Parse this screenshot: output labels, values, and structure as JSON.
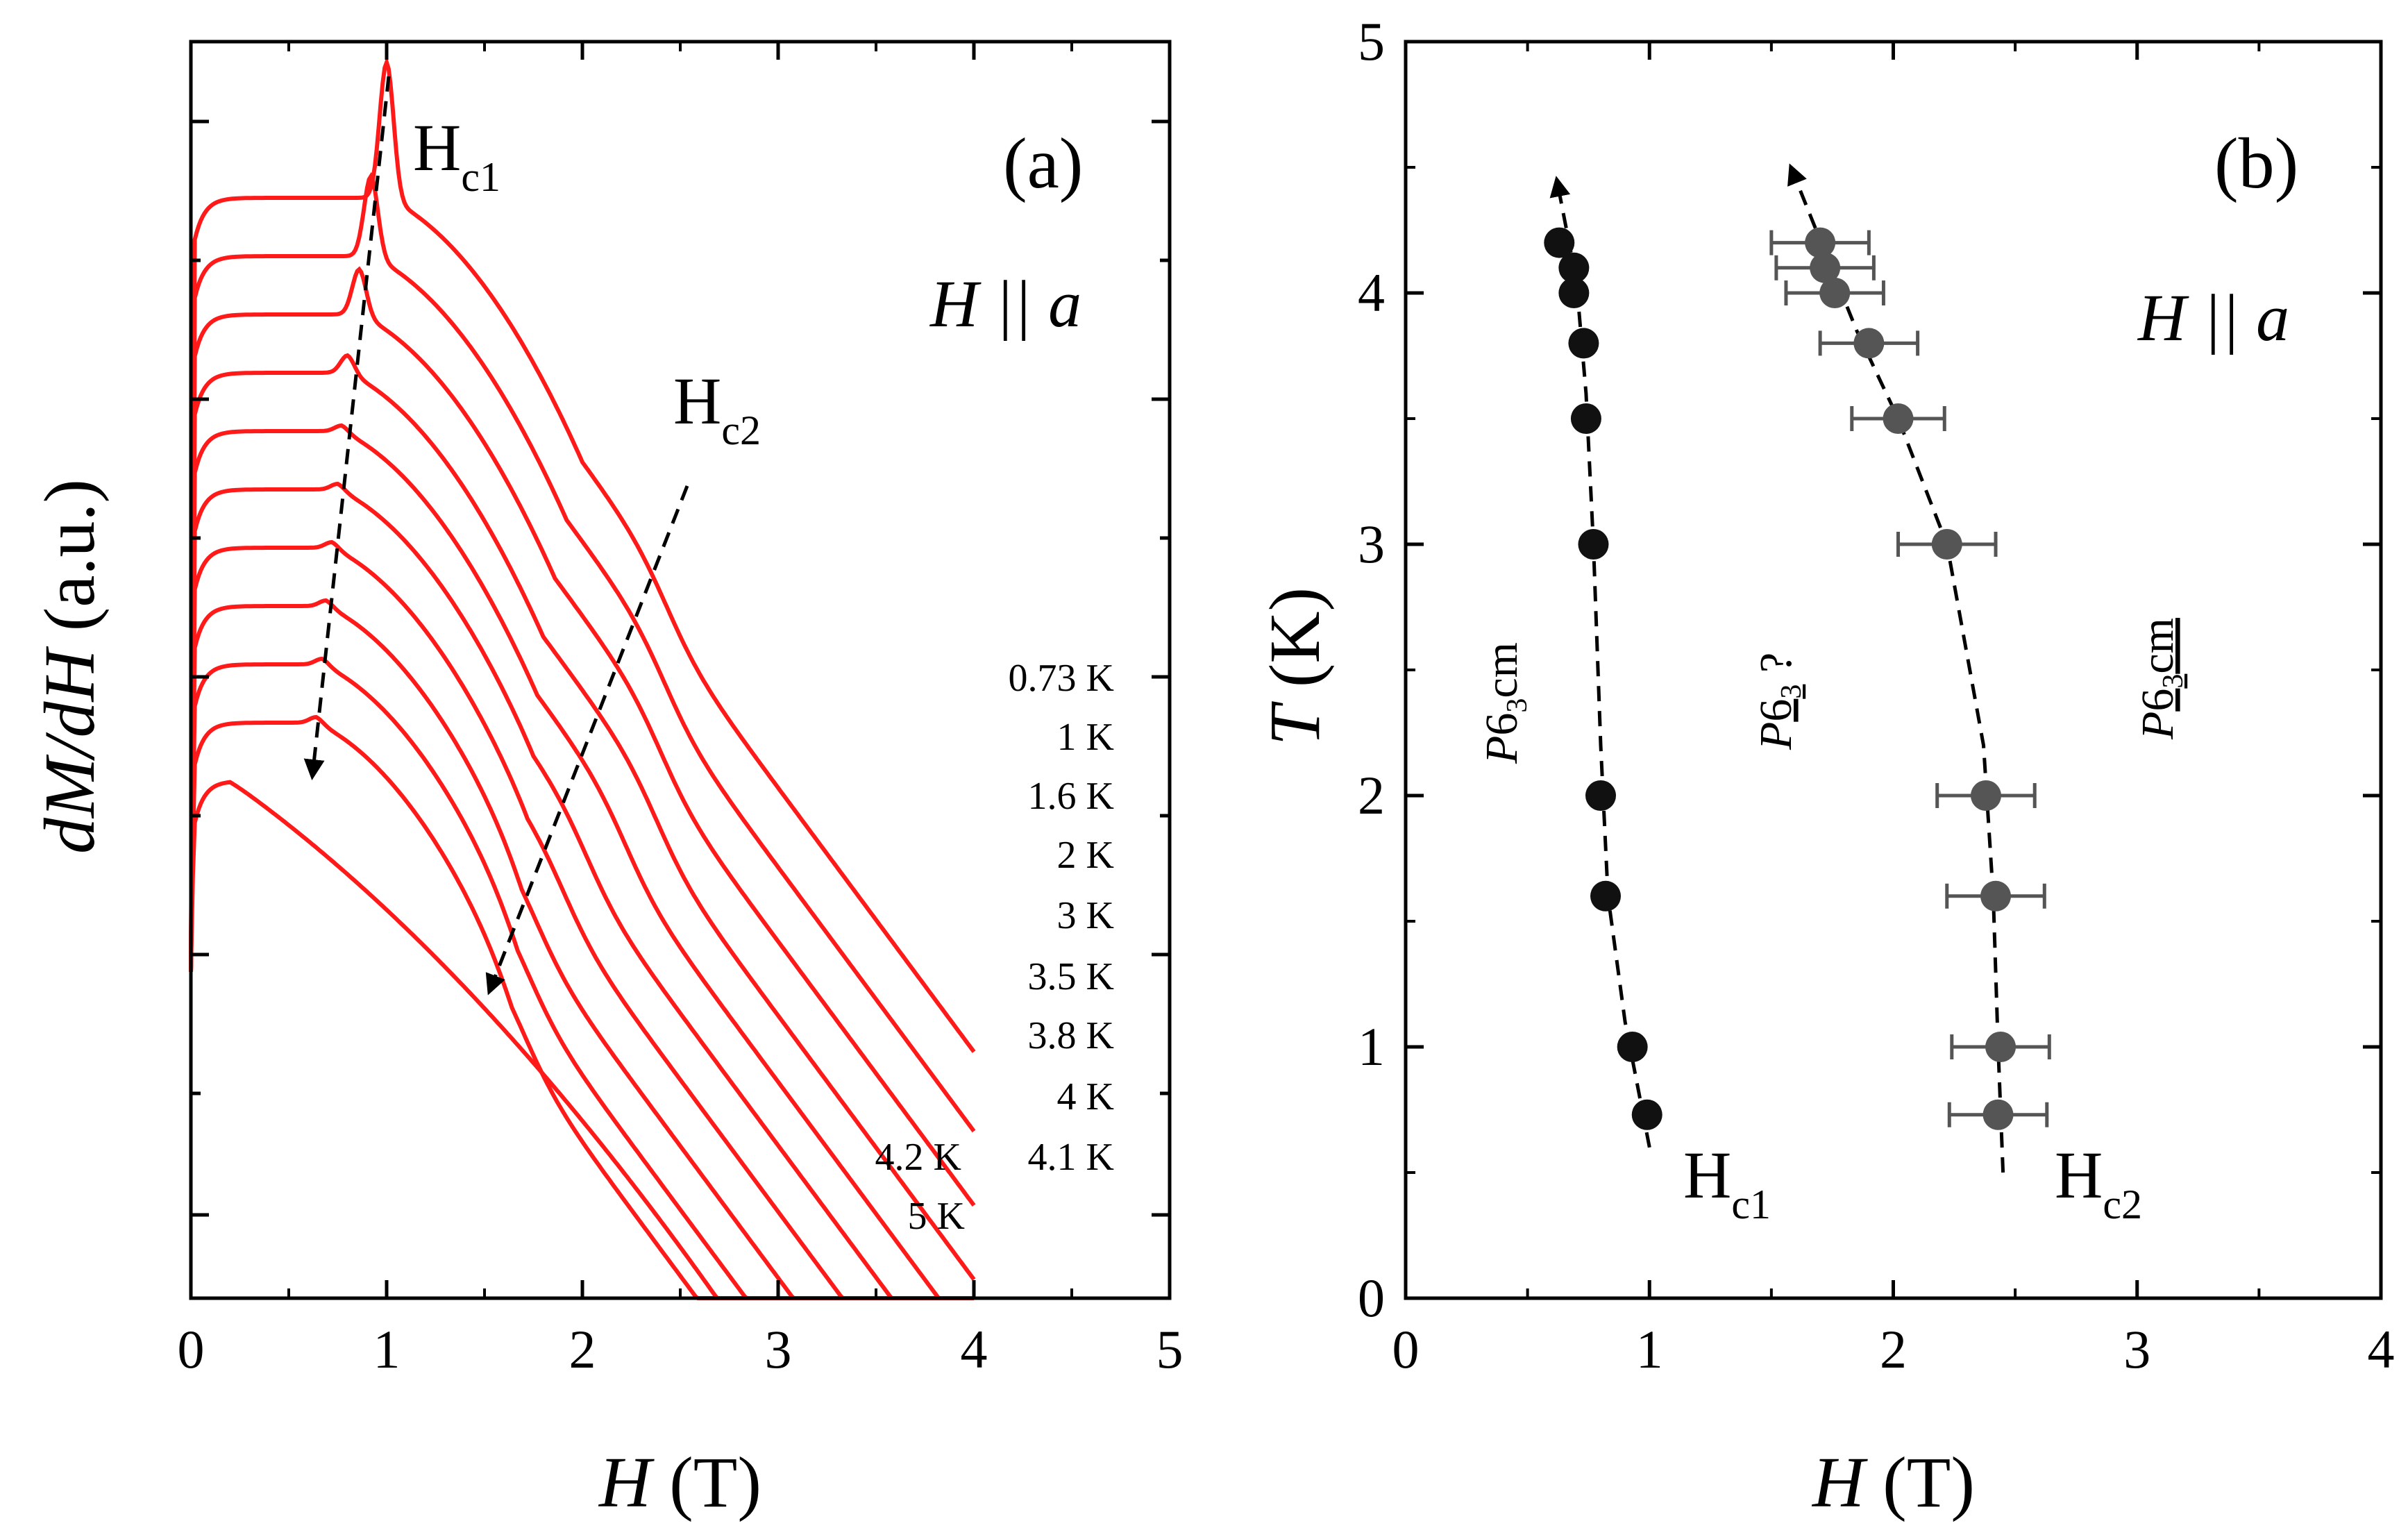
{
  "chart_data": [
    {
      "type": "line",
      "panel_label": "(a)",
      "xlabel_italic": "H",
      "xlabel_unit": "(T)",
      "ylabel_italic": "dM/dH",
      "ylabel_unit": "(a.u.)",
      "condition": "H || a",
      "xlim": [
        0,
        5
      ],
      "x_ticks": [
        "0",
        "1",
        "2",
        "3",
        "4",
        "5"
      ],
      "annotations": {
        "hc1": {
          "main": "H",
          "sub": "c1"
        },
        "hc2": {
          "main": "H",
          "sub": "c2"
        }
      },
      "series": [
        {
          "temperature": "0.73 K",
          "x_end": 4.0,
          "hc1": 1.0,
          "hc2": 2.43
        },
        {
          "temperature": "1 K",
          "x_end": 4.0,
          "hc1": 0.92,
          "hc2": 2.42
        },
        {
          "temperature": "1.6 K",
          "x_end": 4.0,
          "hc1": 0.86,
          "hc2": 2.4
        },
        {
          "temperature": "2 K",
          "x_end": 4.0,
          "hc1": 0.8,
          "hc2": 2.38
        },
        {
          "temperature": "3 K",
          "x_end": 4.0,
          "hc1": 0.77,
          "hc2": 2.22
        },
        {
          "temperature": "3.5 K",
          "x_end": 4.0,
          "hc1": 0.75,
          "hc2": 2.02
        },
        {
          "temperature": "3.8 K",
          "x_end": 4.0,
          "hc1": 0.72,
          "hc2": 1.9
        },
        {
          "temperature": "4 K",
          "x_end": 4.0,
          "hc1": 0.69,
          "hc2": 1.76
        },
        {
          "temperature": "4.1 K",
          "x_end": 4.0,
          "hc1": 0.67,
          "hc2": 1.72
        },
        {
          "temperature": "4.2 K",
          "x_end": 3.3,
          "hc1": 0.64,
          "hc2": 1.7
        },
        {
          "temperature": "5 K",
          "x_end": 4.0,
          "hc1": null,
          "hc2": null
        }
      ]
    },
    {
      "type": "scatter",
      "panel_label": "(b)",
      "xlabel_italic": "H",
      "xlabel_unit": "(T)",
      "ylabel_italic": "T",
      "ylabel_unit": "(K)",
      "condition": "H || a",
      "xlim": [
        0,
        4
      ],
      "ylim": [
        0,
        5
      ],
      "x_ticks": [
        "0",
        "1",
        "2",
        "3",
        "4"
      ],
      "y_ticks": [
        "0",
        "1",
        "2",
        "3",
        "4",
        "5"
      ],
      "phases": {
        "left": {
          "italic": "P",
          "rest": "6",
          "sub": "3",
          "tail": "cm"
        },
        "middle": {
          "italic": "P",
          "rest": "6",
          "sub": "3",
          "tail": " ?"
        },
        "right": {
          "italic": "P",
          "rest": "6",
          "sub": "3",
          "tail": "cm"
        }
      },
      "series": [
        {
          "name": "H",
          "sub": "c1",
          "color": "#111111",
          "points": [
            [
              0.99,
              0.73
            ],
            [
              0.93,
              1.0
            ],
            [
              0.82,
              1.6
            ],
            [
              0.8,
              2.0
            ],
            [
              0.77,
              3.0
            ],
            [
              0.74,
              3.5
            ],
            [
              0.73,
              3.8
            ],
            [
              0.69,
              4.0
            ],
            [
              0.69,
              4.1
            ],
            [
              0.63,
              4.2
            ]
          ]
        },
        {
          "name": "H",
          "sub": "c2",
          "color": "#555555",
          "points": [
            [
              2.43,
              0.73,
              0.2
            ],
            [
              2.44,
              1.0,
              0.2
            ],
            [
              2.42,
              1.6,
              0.2
            ],
            [
              2.38,
              2.0,
              0.2
            ],
            [
              2.22,
              3.0,
              0.2
            ],
            [
              2.02,
              3.5,
              0.19
            ],
            [
              1.9,
              3.8,
              0.2
            ],
            [
              1.76,
              4.0,
              0.2
            ],
            [
              1.72,
              4.1,
              0.2
            ],
            [
              1.7,
              4.2,
              0.2
            ]
          ]
        }
      ]
    }
  ]
}
